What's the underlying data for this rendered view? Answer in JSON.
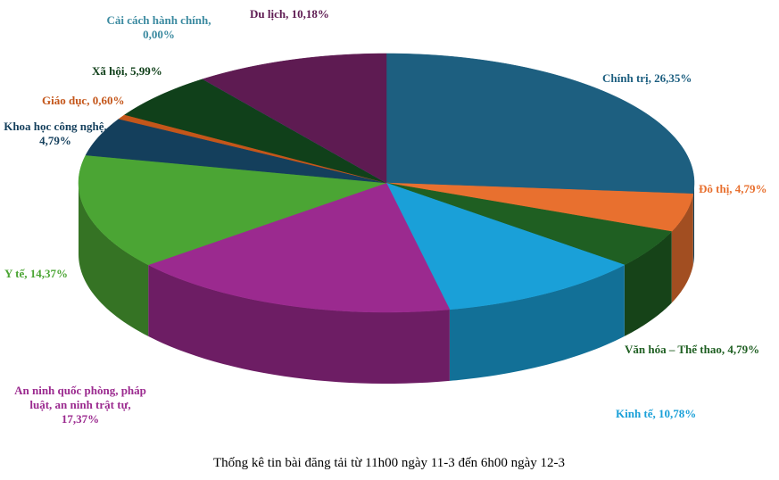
{
  "chart_data": {
    "type": "pie3d",
    "title": "Thống kê tin bài đăng tải từ 11h00 ngày 11-3 đến 6h00 ngày 12-3",
    "values": [
      26.35,
      4.79,
      4.79,
      10.78,
      17.37,
      14.37,
      4.79,
      0.6,
      5.99,
      0.0,
      10.18
    ],
    "value_labels": [
      "Chính trị, 26,35%",
      "Đô thị, 4,79%",
      "Văn hóa – Thể thao, 4,79%",
      "Kinh tế, 10,78%",
      "An ninh quốc phòng, pháp\nluật, an ninh trật tự,\n17,37%",
      "Y tế, 14,37%",
      "Khoa học công nghệ,\n4,79%",
      "Giáo dục, 0,60%",
      "Xã hội, 5,99%",
      "Cải cách hành chính,\n0,00%",
      "Du lịch, 10,18%"
    ],
    "colors": [
      "#1d5f80",
      "#e8702f",
      "#1f5f22",
      "#1aa0d8",
      "#9b2a8f",
      "#4ba534",
      "#143f5c",
      "#c4561a",
      "#10401a",
      "#3b8aa0",
      "#5e1b52"
    ]
  }
}
